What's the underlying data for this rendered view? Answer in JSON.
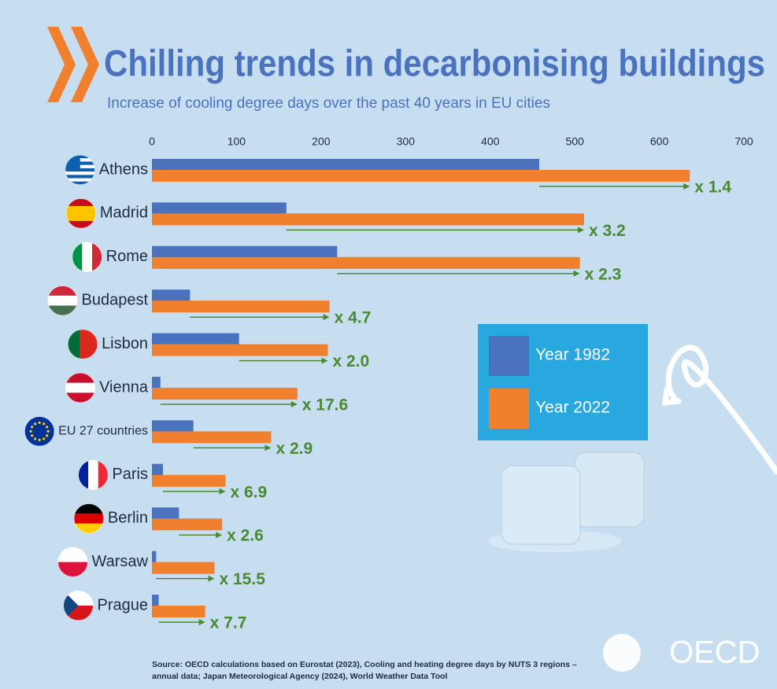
{
  "chart_data": {
    "type": "bar",
    "orientation": "horizontal",
    "title": "Chilling trends in decarbonising buildings",
    "subtitle": "Increase of cooling degree days over the past 40 years in EU cities",
    "categories": [
      "Athens",
      "Madrid",
      "Rome",
      "Budapest",
      "Lisbon",
      "Vienna",
      "EU 27 countries",
      "Paris",
      "Berlin",
      "Warsaw",
      "Prague"
    ],
    "series": [
      {
        "name": "Year 1982",
        "color": "#4a72be",
        "values": [
          458,
          159,
          219,
          45,
          103,
          10,
          49,
          13,
          32,
          5,
          8
        ]
      },
      {
        "name": "Year 2022",
        "color": "#f07f2e",
        "values": [
          636,
          511,
          506,
          210,
          208,
          172,
          141,
          87,
          83,
          74,
          63
        ]
      }
    ],
    "multipliers": [
      "x 1.4",
      "x 3.2",
      "x 2.3",
      "x 4.7",
      "x 2.0",
      "x 17.6",
      "x 2.9",
      "x 6.9",
      "x 2.6",
      "x 15.5",
      "x 7.7"
    ],
    "multiplier_color": "#4a8a30",
    "xlim": [
      0,
      700
    ],
    "xticks": [
      0,
      100,
      200,
      300,
      400,
      500,
      600,
      700
    ],
    "grid": false
  },
  "source": [
    "Source: OECD calculations based on Eurostat (2023), Cooling and heating degree days by NUTS 3 regions –",
    "annual data; Japan Meteorological Agency (2024), World Weather Data Tool"
  ],
  "logo": "OECD"
}
